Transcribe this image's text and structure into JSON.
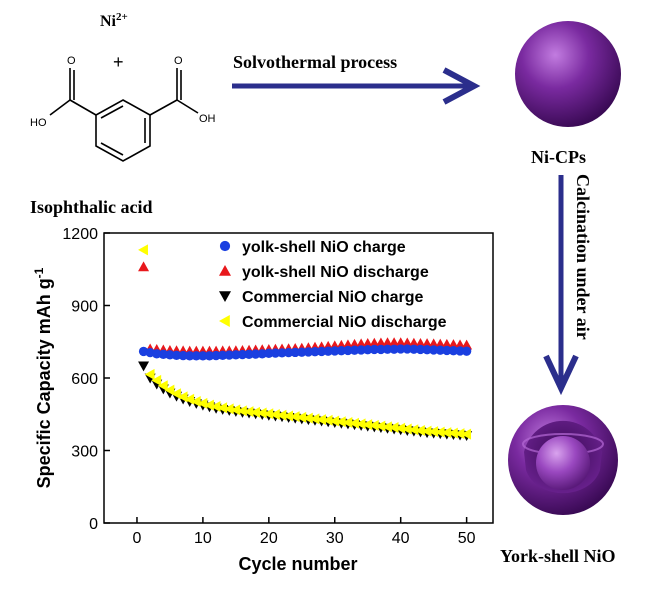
{
  "scheme": {
    "ion_label": "Ni",
    "ion_charge": "2+",
    "plus_sign": "+",
    "ho_label": "HO",
    "oh_label": "OH",
    "o_label": "O",
    "molecule_name": "Isophthalic acid",
    "step1_label": "Solvothermal process",
    "intermediate_label": "Ni-CPs",
    "step2_label": "Calcination under air",
    "product_label": "York-shell NiO",
    "arrow_color": "#2b2e8c",
    "sphere_color": "#7a2aa0"
  },
  "chart_data": {
    "type": "scatter",
    "title": "",
    "xlabel": "Cycle number",
    "ylabel": "Specific Capacity mAh g",
    "ylabel_superscript": "-1",
    "xlim": [
      -5,
      54
    ],
    "ylim": [
      0,
      1200
    ],
    "xticks": [
      0,
      10,
      20,
      30,
      40,
      50
    ],
    "yticks": [
      0,
      300,
      600,
      900,
      1200
    ],
    "grid": false,
    "legend_position": "top-right",
    "series": [
      {
        "name": "yolk-shell NiO charge",
        "marker": "circle",
        "color": "#1a3fe0",
        "x": [
          1,
          2,
          3,
          4,
          5,
          6,
          7,
          8,
          9,
          10,
          11,
          12,
          13,
          14,
          15,
          16,
          17,
          18,
          19,
          20,
          21,
          22,
          23,
          24,
          25,
          26,
          27,
          28,
          29,
          30,
          31,
          32,
          33,
          34,
          35,
          36,
          37,
          38,
          39,
          40,
          41,
          42,
          43,
          44,
          45,
          46,
          47,
          48,
          49,
          50
        ],
        "y": [
          710,
          705,
          700,
          698,
          696,
          694,
          693,
          692,
          692,
          692,
          692,
          693,
          694,
          695,
          696,
          697,
          698,
          699,
          700,
          702,
          703,
          704,
          705,
          706,
          707,
          708,
          709,
          710,
          711,
          712,
          713,
          714,
          715,
          716,
          717,
          718,
          718,
          719,
          719,
          720,
          720,
          719,
          718,
          717,
          716,
          715,
          714,
          713,
          712,
          711
        ]
      },
      {
        "name": "yolk-shell NiO discharge",
        "marker": "triangle-up",
        "color": "#e8181c",
        "x": [
          1,
          2,
          3,
          4,
          5,
          6,
          7,
          8,
          9,
          10,
          11,
          12,
          13,
          14,
          15,
          16,
          17,
          18,
          19,
          20,
          21,
          22,
          23,
          24,
          25,
          26,
          27,
          28,
          29,
          30,
          31,
          32,
          33,
          34,
          35,
          36,
          37,
          38,
          39,
          40,
          41,
          42,
          43,
          44,
          45,
          46,
          47,
          48,
          49,
          50
        ],
        "y": [
          1060,
          720,
          718,
          716,
          714,
          713,
          712,
          711,
          711,
          711,
          711,
          711,
          712,
          712,
          713,
          714,
          715,
          716,
          717,
          718,
          719,
          720,
          721,
          722,
          723,
          725,
          727,
          729,
          731,
          733,
          735,
          737,
          739,
          741,
          743,
          744,
          745,
          746,
          746,
          746,
          745,
          744,
          743,
          742,
          741,
          740,
          739,
          738,
          737,
          736
        ]
      },
      {
        "name": "Commercial NiO charge",
        "marker": "triangle-down",
        "color": "#000000",
        "x": [
          1,
          2,
          3,
          4,
          5,
          6,
          7,
          8,
          9,
          10,
          11,
          12,
          13,
          14,
          15,
          16,
          17,
          18,
          19,
          20,
          21,
          22,
          23,
          24,
          25,
          26,
          27,
          28,
          29,
          30,
          31,
          32,
          33,
          34,
          35,
          36,
          37,
          38,
          39,
          40,
          41,
          42,
          43,
          44,
          45,
          46,
          47,
          48,
          49,
          50
        ],
        "y": [
          650,
          600,
          575,
          555,
          538,
          525,
          513,
          503,
          495,
          488,
          481,
          475,
          470,
          466,
          462,
          458,
          455,
          452,
          449,
          446,
          443,
          440,
          437,
          434,
          431,
          428,
          425,
          422,
          419,
          416,
          413,
          410,
          407,
          404,
          401,
          398,
          395,
          392,
          389,
          386,
          383,
          380,
          377,
          374,
          372,
          370,
          368,
          366,
          364,
          362
        ]
      },
      {
        "name": "Commercial NiO discharge",
        "marker": "triangle-left",
        "color": "#ffff00",
        "x": [
          1,
          2,
          3,
          4,
          5,
          6,
          7,
          8,
          9,
          10,
          11,
          12,
          13,
          14,
          15,
          16,
          17,
          18,
          19,
          20,
          21,
          22,
          23,
          24,
          25,
          26,
          27,
          28,
          29,
          30,
          31,
          32,
          33,
          34,
          35,
          36,
          37,
          38,
          39,
          40,
          41,
          42,
          43,
          44,
          45,
          46,
          47,
          48,
          49,
          50
        ],
        "y": [
          1130,
          615,
          590,
          568,
          550,
          535,
          522,
          512,
          503,
          495,
          488,
          482,
          477,
          472,
          468,
          464,
          461,
          458,
          455,
          452,
          449,
          446,
          443,
          440,
          437,
          434,
          431,
          428,
          425,
          422,
          419,
          416,
          413,
          410,
          407,
          404,
          401,
          398,
          395,
          392,
          389,
          386,
          383,
          380,
          378,
          376,
          374,
          372,
          370,
          368
        ]
      }
    ]
  }
}
